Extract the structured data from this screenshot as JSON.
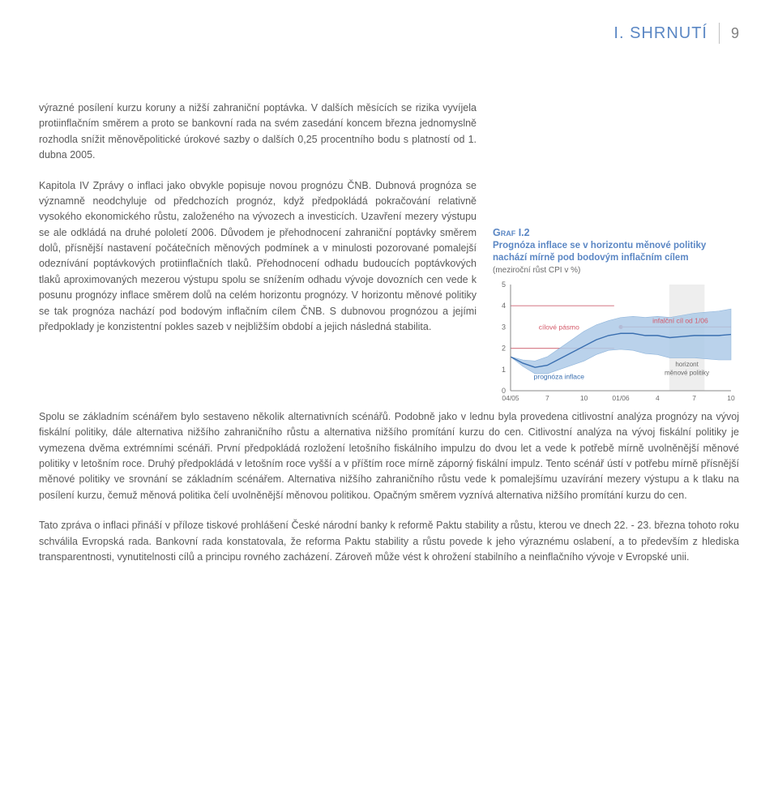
{
  "header": {
    "title": "I. SHRNUTÍ",
    "page": "9"
  },
  "paragraphs": {
    "p1": "výrazné posílení kurzu koruny a nižší zahraniční poptávka. V dalších měsících se rizika vyvíjela protiinflačním směrem a proto se bankovní rada na svém zasedání koncem března jednomyslně rozhodla snížit měnověpolitické úrokové sazby o dalších 0,25 procentního bodu s platností od 1. dubna 2005.",
    "p2": "Kapitola IV Zprávy o inflaci jako obvykle popisuje novou prognózu ČNB. Dubnová prognóza se významně neodchyluje od předchozích prognóz, když předpokládá pokračování relativně vysokého ekonomického růstu, založeného na vývozech a investicích. Uzavření mezery výstupu se ale odkládá na druhé pololetí 2006. Důvodem je přehodnocení zahraniční poptávky směrem dolů, přísnější nastavení počátečních měnových podmínek a v minulosti pozorované pomalejší odeznívání poptávkových protiinflačních tlaků. Přehodnocení odhadu budoucích poptávkových tlaků aproximovaných mezerou výstupu spolu se snížením odhadu vývoje dovozních cen vede k posunu prognózy inflace směrem dolů na celém horizontu prognózy. V horizontu měnové politiky se tak prognóza nachází pod bodovým inflačním cílem ČNB. S dubnovou prognózou a jejími předpoklady je konzistentní pokles sazeb v nejbližším období a jejich následná stabilita.",
    "p3": "Spolu se základním scénářem bylo sestaveno několik alternativních scénářů. Podobně jako v lednu byla provedena citlivostní analýza prognózy na vývoj fiskální politiky, dále alternativa nižšího zahraničního růstu a alternativa nižšího promítání kurzu do cen. Citlivostní analýza na vývoj fiskální politiky je vymezena dvěma extrémními scénáři. První předpokládá rozložení letošního fiskálního impulzu do dvou let a vede k potřebě mírně uvolněnější měnové politiky v letošním roce. Druhý předpokládá v letošním roce vyšší a v příštím roce mírně záporný fiskální impulz. Tento scénář ústí v potřebu mírně přísnější měnové politiky ve srovnání se základním scénářem. Alternativa nižšího zahraničního růstu vede k pomalejšímu uzavírání mezery výstupu a k tlaku na posílení kurzu, čemuž měnová politika čelí uvolněnější měnovou politikou. Opačným směrem vyznívá alternativa nižšího promítání kurzu do cen.",
    "p4": "Tato zpráva o inflaci přináší v příloze tiskové prohlášení České národní banky k reformě Paktu stability a růstu, kterou ve dnech 22. - 23. března tohoto roku schválila Evropská rada. Bankovní rada konstatovala, že reforma Paktu stability a růstu povede k jeho výraznému oslabení, a to především z hlediska transparentnosti, vynutitelnosti cílů a principu rovného zacházení. Zároveň může vést k ohrožení stabilního a neinflačního vývoje v Evropské unii."
  },
  "chart": {
    "label": "Graf I.2",
    "title": "Prognóza inflace se v horizontu měnové politiky nachází mírně pod bodovým inflačním cílem",
    "subtitle": "(meziroční růst CPI v %)",
    "ylim": [
      0,
      5
    ],
    "yticks": [
      0,
      1,
      2,
      3,
      4,
      5
    ],
    "xticks": [
      "04/05",
      "7",
      "10",
      "01/06",
      "4",
      "7",
      "10"
    ],
    "annotations": {
      "cilove_pasmo": "cílové pásmo",
      "infalcni_cil": "infalční cíl od 1/06",
      "prognoza": "prognóza inflace",
      "horizont": "horizont měnové politiky"
    },
    "colors": {
      "axis": "#888888",
      "tick_text": "#6a6a6a",
      "band_fill": "#aecbe8",
      "band_stroke": "#7faad6",
      "line": "#3a6fb0",
      "target_band": "#d9848f",
      "target_point": "#d45a6a",
      "annotation_red": "#d45a6a",
      "annotation_blue": "#3a6fb0",
      "annotation_gray": "#6a6a6a",
      "horizon_fill": "#e0e0e0"
    },
    "target_band_y": [
      2,
      4
    ],
    "target_point_y": 3,
    "prognoza_line": [
      1.6,
      1.3,
      1.1,
      1.2,
      1.5,
      1.8,
      2.1,
      2.4,
      2.6,
      2.7,
      2.7,
      2.6,
      2.6,
      2.5,
      2.55,
      2.6,
      2.6,
      2.6,
      2.65
    ],
    "fan_upper": [
      1.6,
      1.45,
      1.4,
      1.6,
      2.0,
      2.4,
      2.8,
      3.1,
      3.3,
      3.45,
      3.5,
      3.45,
      3.5,
      3.45,
      3.55,
      3.65,
      3.7,
      3.75,
      3.85
    ],
    "fan_lower": [
      1.6,
      1.15,
      0.8,
      0.8,
      1.0,
      1.2,
      1.4,
      1.7,
      1.9,
      1.95,
      1.9,
      1.75,
      1.7,
      1.55,
      1.55,
      1.55,
      1.5,
      1.45,
      1.45
    ],
    "horizon_x_range": [
      0.72,
      0.88
    ]
  }
}
